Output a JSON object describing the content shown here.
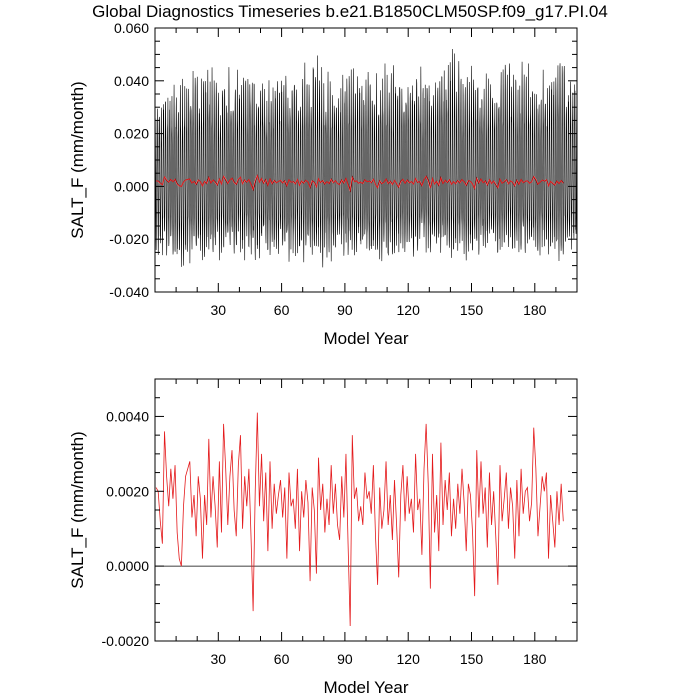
{
  "title": "Global Diagnostics Timeseries b.e21.B1850CLM50SP.f09_g17.PI.04",
  "colors": {
    "monthly": "#000000",
    "annual": "#e41a1c",
    "axis": "#000000"
  },
  "chart_data": [
    {
      "type": "line",
      "xlabel": "Model Year",
      "ylabel": "SALT_F (mm/month)",
      "xlim": [
        0,
        200
      ],
      "ylim": [
        -0.04,
        0.06
      ],
      "xticks": [
        30,
        60,
        90,
        120,
        150,
        180
      ],
      "xtick_labels": [
        "30",
        "60",
        "90",
        "120",
        "150",
        "180"
      ],
      "yticks": [
        -0.04,
        -0.02,
        0.0,
        0.02,
        0.04,
        0.06
      ],
      "ytick_labels": [
        "-0.040",
        "-0.020",
        "0.000",
        "0.020",
        "0.040",
        "0.060"
      ],
      "grid": false,
      "series": [
        {
          "style": "monthly",
          "color": "#000000",
          "x_start": 0.0417,
          "x_step": 0.0833,
          "n_months": 2400,
          "seasonal_amplitude": 0.026,
          "envelope_max": [
            0.032,
            0.036,
            0.04,
            0.043,
            0.045,
            0.044,
            0.046,
            0.045,
            0.043,
            0.046,
            0.044,
            0.047,
            0.045,
            0.043,
            0.044,
            0.047,
            0.046,
            0.044,
            0.048,
            0.052,
            0.046,
            0.044,
            0.045,
            0.047,
            0.046,
            0.044,
            0.043,
            0.046,
            0.045,
            0.047,
            0.05,
            0.046,
            0.044,
            0.045,
            0.049,
            0.054,
            0.048,
            0.045,
            0.047,
            0.044,
            0.045,
            0.049,
            0.052,
            0.045,
            0.046,
            0.044,
            0.047,
            0.045,
            0.055,
            0.046
          ],
          "envelope_min": [
            -0.025,
            -0.028,
            -0.031,
            -0.032,
            -0.029,
            -0.028,
            -0.03,
            -0.027,
            -0.029,
            -0.028,
            -0.027,
            -0.029,
            -0.03,
            -0.028,
            -0.027,
            -0.028,
            -0.029,
            -0.027,
            -0.028,
            -0.029,
            -0.03,
            -0.028,
            -0.027,
            -0.029,
            -0.026,
            -0.028,
            -0.027,
            -0.029,
            -0.028,
            -0.027,
            -0.028,
            -0.026,
            -0.027,
            -0.029,
            -0.028,
            -0.027,
            -0.026,
            -0.028,
            -0.027,
            -0.029,
            -0.028,
            -0.027,
            -0.026,
            -0.028,
            -0.027,
            -0.028,
            -0.026,
            -0.027,
            -0.028,
            -0.026
          ]
        },
        {
          "style": "annual",
          "color": "#e41a1c",
          "x_start": 0.5,
          "x_step": 1,
          "values_ref": "annual_means"
        }
      ]
    },
    {
      "type": "line",
      "xlabel": "Model Year",
      "ylabel": "SALT_F (mm/month)",
      "xlim": [
        0,
        200
      ],
      "ylim": [
        -0.002,
        0.005
      ],
      "xticks": [
        30,
        60,
        90,
        120,
        150,
        180
      ],
      "xtick_labels": [
        "30",
        "60",
        "90",
        "120",
        "150",
        "180"
      ],
      "yticks": [
        -0.002,
        0.0,
        0.002,
        0.004
      ],
      "ytick_labels": [
        "-0.0020",
        "0.0000",
        "0.0020",
        "0.0040"
      ],
      "zero_line": true,
      "grid": false,
      "series": [
        {
          "color": "#e41a1c",
          "x_start": 0.5,
          "x_step": 1,
          "values_ref": "annual_means"
        }
      ]
    }
  ],
  "annual_means": [
    0.0021,
    0.002,
    0.0012,
    0.0006,
    0.0036,
    0.0024,
    0.0016,
    0.0026,
    0.0018,
    0.0027,
    0.0009,
    0.0002,
    0.0,
    0.0016,
    0.0024,
    0.0026,
    0.0028,
    0.0013,
    0.0019,
    0.0008,
    0.0024,
    0.0018,
    0.0002,
    0.0019,
    0.0011,
    0.0034,
    0.0013,
    0.0024,
    0.0016,
    0.0005,
    0.0028,
    0.0009,
    0.0038,
    0.0026,
    0.0011,
    0.0024,
    0.0031,
    0.0015,
    0.0008,
    0.0027,
    0.0035,
    0.001,
    0.0024,
    0.0016,
    0.0026,
    0.0008,
    -0.0012,
    0.002,
    0.0041,
    0.0016,
    0.003,
    0.0012,
    0.0025,
    0.0004,
    0.0028,
    0.001,
    0.0022,
    0.0014,
    0.0019,
    0.0023,
    0.0013,
    0.0021,
    0.0002,
    0.0025,
    0.0016,
    0.0018,
    0.001,
    0.0026,
    0.0004,
    0.002,
    0.0013,
    0.0023,
    0.0017,
    -0.0004,
    0.0021,
    0.0015,
    -0.0002,
    0.0029,
    0.0015,
    0.0022,
    0.0009,
    0.0018,
    0.0011,
    0.0027,
    0.0014,
    0.0022,
    0.0011,
    0.0007,
    0.0024,
    0.0013,
    0.003,
    0.0006,
    -0.0016,
    0.0035,
    0.0018,
    0.0021,
    0.0012,
    0.0016,
    0.0011,
    0.0025,
    0.0018,
    0.002,
    0.0014,
    0.0027,
    0.0008,
    -0.0005,
    0.0021,
    0.001,
    0.0015,
    0.0028,
    0.0011,
    0.0019,
    0.0007,
    0.0023,
    0.0011,
    -0.0003,
    0.0019,
    0.0027,
    0.0012,
    0.0024,
    0.0014,
    0.0018,
    0.0009,
    0.003,
    0.0015,
    0.0018,
    0.0003,
    0.0026,
    0.0038,
    0.0022,
    -0.0006,
    0.003,
    0.0009,
    0.0019,
    0.0004,
    0.0033,
    0.0011,
    0.0023,
    0.0015,
    0.0025,
    0.0008,
    0.0018,
    0.001,
    0.0022,
    0.0014,
    0.0026,
    0.0017,
    0.0004,
    0.0022,
    0.0019,
    0.0009,
    -0.0008,
    0.0031,
    0.0013,
    0.0028,
    0.0014,
    0.0021,
    0.0005,
    0.0025,
    0.0011,
    0.002,
    0.0008,
    -0.0005,
    0.0027,
    0.0012,
    0.0018,
    0.0025,
    0.001,
    0.0021,
    0.0016,
    0.0002,
    0.0023,
    0.0008,
    0.0026,
    0.0014,
    0.002,
    0.0021,
    0.0012,
    0.0017,
    0.0037,
    0.0026,
    0.0008,
    0.0016,
    0.0024,
    0.002,
    0.0025,
    0.0002,
    0.0019,
    0.0012,
    0.0005,
    0.002,
    0.0011,
    0.0022,
    0.0012
  ]
}
